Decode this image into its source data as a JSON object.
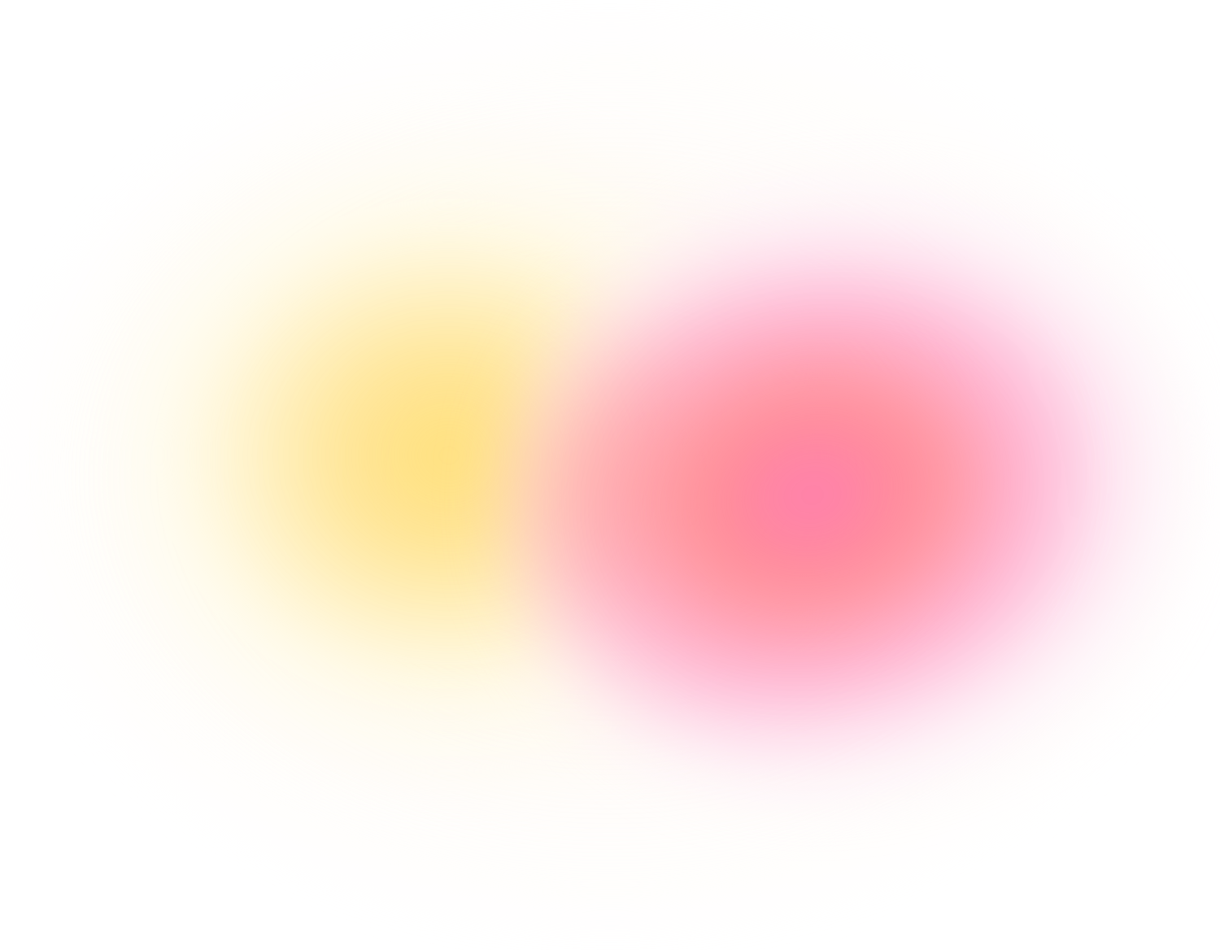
{
  "background": {
    "base_color": "#ffffff",
    "blobs": [
      {
        "name": "yellow",
        "core_color": "#ffdf7a",
        "edge_color": "#fffbe6"
      },
      {
        "name": "pink",
        "core_color": "#ff7ab6",
        "mid_color": "#ff7f86",
        "edge_color": "#fde6f3"
      }
    ]
  }
}
